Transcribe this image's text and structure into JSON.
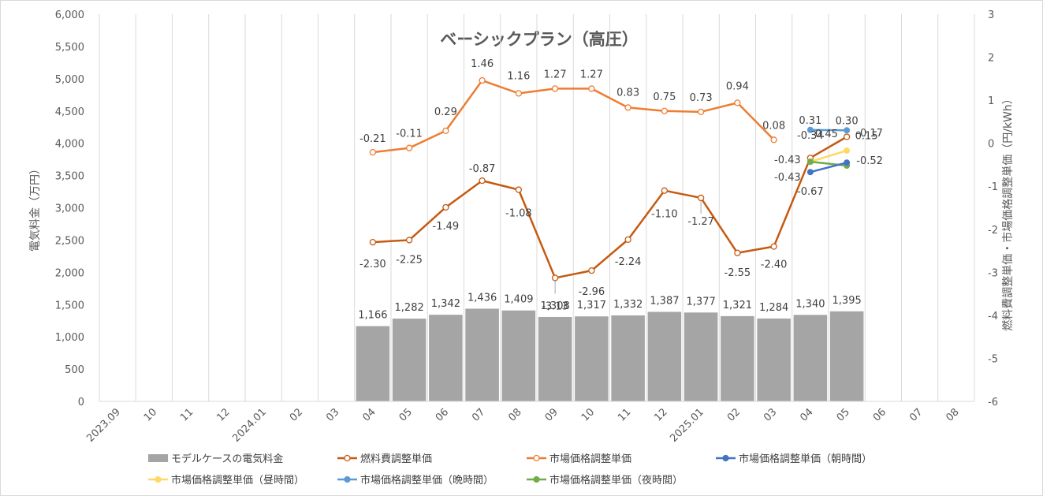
{
  "chart_data": {
    "type": "bar",
    "title": "ベーシックプラン（高圧）",
    "ylabel": "電気料金（万円）",
    "y2label": "燃料費調整単価・市場価格調整単価（円/kWh）",
    "ylim": [
      0,
      6000
    ],
    "y2lim": [
      -6,
      3
    ],
    "grid": "vertical",
    "legend_position": "bottom",
    "categories": [
      "2023.09",
      "10",
      "11",
      "12",
      "2024.01",
      "02",
      "03",
      "04",
      "05",
      "06",
      "07",
      "08",
      "09",
      "10",
      "11",
      "12",
      "2025.01",
      "02",
      "03",
      "04",
      "05",
      "06",
      "07",
      "08"
    ],
    "y_ticks": [
      "0",
      "500",
      "1,000",
      "1,500",
      "2,000",
      "2,500",
      "3,000",
      "3,500",
      "4,000",
      "4,500",
      "5,000",
      "5,500",
      "6,000"
    ],
    "y2_ticks": [
      "-6",
      "-5",
      "-4",
      "-3",
      "-2",
      "-1",
      "0",
      "1",
      "2",
      "3"
    ],
    "series": [
      {
        "name": "モデルケースの電気料金",
        "type": "bar",
        "axis": "left",
        "color": "#a5a5a5",
        "values": [
          null,
          null,
          null,
          null,
          null,
          null,
          null,
          1166,
          1282,
          1342,
          1436,
          1409,
          1308,
          1317,
          1332,
          1387,
          1377,
          1321,
          1284,
          1340,
          1395,
          null,
          null,
          null
        ],
        "labels": [
          null,
          null,
          null,
          null,
          null,
          null,
          null,
          "1,166",
          "1,282",
          "1,342",
          "1,436",
          "1,409",
          "1,308",
          "1,317",
          "1,332",
          "1,387",
          "1,377",
          "1,321",
          "1,284",
          "1,340",
          "1,395",
          null,
          null,
          null
        ]
      },
      {
        "name": "燃料費調整単価",
        "type": "line",
        "axis": "right",
        "color": "#c55a11",
        "values": [
          null,
          null,
          null,
          null,
          null,
          null,
          null,
          -2.3,
          -2.25,
          -1.49,
          -0.87,
          -1.08,
          -3.13,
          -2.96,
          -2.24,
          -1.1,
          -1.27,
          -2.55,
          -2.4,
          -0.34,
          0.15,
          null,
          null,
          null
        ],
        "labels": [
          null,
          null,
          null,
          null,
          null,
          null,
          null,
          "-2.30",
          "-2.25",
          "-1.49",
          "-0.87",
          "-1.08",
          "-3.13",
          "-2.96",
          "-2.24",
          "-1.10",
          "-1.27",
          "-2.55",
          "-2.40",
          "-0.34",
          "0.15",
          null,
          null,
          null
        ]
      },
      {
        "name": "市場価格調整単価",
        "type": "line",
        "axis": "right",
        "color": "#ed7d31",
        "values": [
          null,
          null,
          null,
          null,
          null,
          null,
          null,
          -0.21,
          -0.11,
          0.29,
          1.46,
          1.16,
          1.27,
          1.27,
          0.83,
          0.75,
          0.73,
          0.94,
          0.08,
          null,
          null,
          null,
          null,
          null
        ],
        "labels": [
          null,
          null,
          null,
          null,
          null,
          null,
          null,
          "-0.21",
          "-0.11",
          "0.29",
          "1.46",
          "1.16",
          "1.27",
          "1.27",
          "0.83",
          "0.75",
          "0.73",
          "0.94",
          "0.08",
          null,
          null,
          null,
          null,
          null
        ]
      },
      {
        "name": "市場価格調整単価（朝時間）",
        "type": "line",
        "axis": "right",
        "color": "#4472c4",
        "values": [
          null,
          null,
          null,
          null,
          null,
          null,
          null,
          null,
          null,
          null,
          null,
          null,
          null,
          null,
          null,
          null,
          null,
          null,
          null,
          -0.67,
          -0.45,
          null,
          null,
          null
        ],
        "labels": [
          null,
          null,
          null,
          null,
          null,
          null,
          null,
          null,
          null,
          null,
          null,
          null,
          null,
          null,
          null,
          null,
          null,
          null,
          null,
          "-0.67",
          "-0.45",
          null,
          null,
          null
        ]
      },
      {
        "name": "市場価格調整単価（昼時間）",
        "type": "line",
        "axis": "right",
        "color": "#ffd966",
        "values": [
          null,
          null,
          null,
          null,
          null,
          null,
          null,
          null,
          null,
          null,
          null,
          null,
          null,
          null,
          null,
          null,
          null,
          null,
          null,
          -0.43,
          -0.17,
          null,
          null,
          null
        ],
        "labels": [
          null,
          null,
          null,
          null,
          null,
          null,
          null,
          null,
          null,
          null,
          null,
          null,
          null,
          null,
          null,
          null,
          null,
          null,
          null,
          "-0.43",
          "-0.17",
          null,
          null,
          null
        ]
      },
      {
        "name": "市場価格調整単価（晩時間）",
        "type": "line",
        "axis": "right",
        "color": "#5b9bd5",
        "values": [
          null,
          null,
          null,
          null,
          null,
          null,
          null,
          null,
          null,
          null,
          null,
          null,
          null,
          null,
          null,
          null,
          null,
          null,
          null,
          0.31,
          0.3,
          null,
          null,
          null
        ],
        "labels": [
          null,
          null,
          null,
          null,
          null,
          null,
          null,
          null,
          null,
          null,
          null,
          null,
          null,
          null,
          null,
          null,
          null,
          null,
          null,
          "0.31",
          "0.30",
          null,
          null,
          null
        ]
      },
      {
        "name": "市場価格調整単価（夜時間）",
        "type": "line",
        "axis": "right",
        "color": "#70ad47",
        "values": [
          null,
          null,
          null,
          null,
          null,
          null,
          null,
          null,
          null,
          null,
          null,
          null,
          null,
          null,
          null,
          null,
          null,
          null,
          null,
          -0.43,
          -0.52,
          null,
          null,
          null
        ],
        "labels": [
          null,
          null,
          null,
          null,
          null,
          null,
          null,
          null,
          null,
          null,
          null,
          null,
          null,
          null,
          null,
          null,
          null,
          null,
          null,
          "-0.43",
          "-0.52",
          null,
          null,
          null
        ]
      }
    ]
  }
}
